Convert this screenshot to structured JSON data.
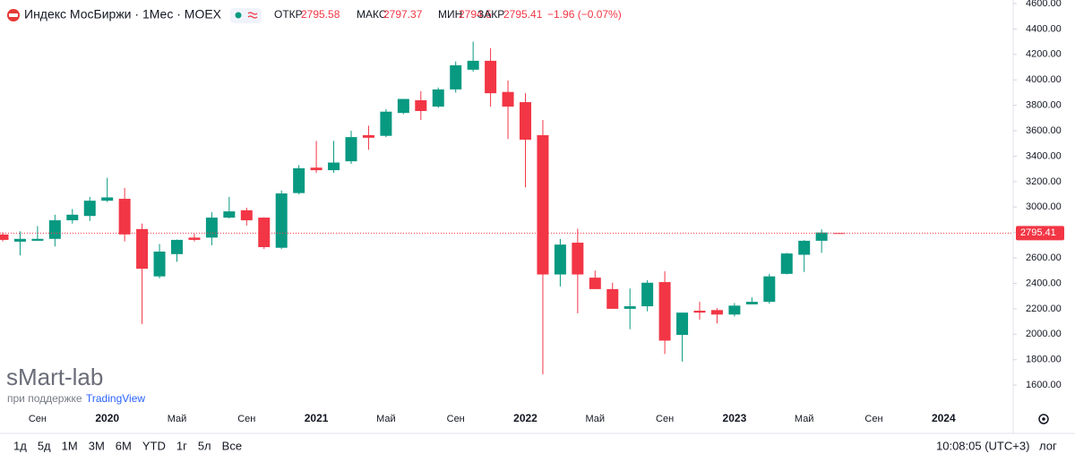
{
  "chart_data": {
    "type": "candlestick",
    "title": "Индекс МосБиржи · 1Мес · MOEX",
    "legend": {
      "open": "ОТКР",
      "high": "МАКС",
      "low": "МИН",
      "close": "ЗАКР",
      "change": "−1.96 (−0.07%)"
    },
    "up_color": "#089981",
    "down_color": "#f23645",
    "categories": [
      null,
      null,
      "Сен",
      null,
      null,
      null,
      "2020",
      null,
      null,
      null,
      "Май",
      null,
      null,
      null,
      "Сен",
      null,
      null,
      null,
      "2021",
      null,
      null,
      null,
      "Май",
      null,
      null,
      null,
      "Сен",
      null,
      null,
      null,
      "2022",
      null,
      null,
      null,
      "Май",
      null,
      null,
      null,
      "Сен",
      null,
      null,
      null,
      "2023",
      null,
      null,
      null,
      "Май",
      null,
      null,
      null,
      "Сен",
      null,
      null,
      null,
      "2024"
    ],
    "open": [
      2784,
      2728,
      2735,
      2750,
      2896,
      2930,
      3050,
      3065,
      2827,
      2455,
      2630,
      2760,
      2760,
      2917,
      2975,
      2917,
      2680,
      3110,
      3310,
      3290,
      3360,
      3565,
      3560,
      3740,
      3840,
      3790,
      3925,
      4080,
      4150,
      3905,
      3825,
      3565,
      2470,
      2720,
      2445,
      2355,
      2200,
      2220,
      2410,
      1995,
      2185,
      2190,
      2155,
      2235,
      2255,
      2475,
      2625,
      2735,
      2795.58,
      null,
      null,
      null,
      null,
      null,
      null
    ],
    "high": [
      2800,
      2810,
      2850,
      2940,
      2985,
      3080,
      3230,
      3150,
      2870,
      2710,
      2745,
      2790,
      2960,
      3080,
      2995,
      2920,
      3130,
      3330,
      3520,
      3520,
      3600,
      3640,
      3770,
      3850,
      3910,
      3940,
      4145,
      4300,
      4250,
      3995,
      3895,
      3685,
      2750,
      2830,
      2500,
      2405,
      2360,
      2425,
      2495,
      2170,
      2255,
      2205,
      2245,
      2290,
      2475,
      2640,
      2740,
      2825,
      2797.37,
      null,
      null,
      null,
      null,
      null,
      null
    ],
    "low": [
      2730,
      2620,
      2735,
      2690,
      2870,
      2890,
      3040,
      2730,
      2080,
      2440,
      2570,
      2730,
      2700,
      2910,
      2855,
      2670,
      2670,
      3100,
      3270,
      3270,
      3340,
      3450,
      3550,
      3730,
      3685,
      3780,
      3900,
      4065,
      3790,
      3535,
      3155,
      1685,
      2375,
      2165,
      2355,
      2200,
      2040,
      2180,
      1845,
      1785,
      2115,
      2085,
      2140,
      2235,
      2240,
      2470,
      2490,
      2640,
      2794.5,
      null,
      null,
      null,
      null,
      null,
      null
    ],
    "close": [
      2742,
      2750,
      2750,
      2896,
      2940,
      3050,
      3076,
      2785,
      2515,
      2650,
      2742,
      2742,
      2917,
      2966,
      2896,
      2685,
      3107,
      3305,
      3290,
      3350,
      3550,
      3545,
      3750,
      3850,
      3755,
      3925,
      4115,
      4150,
      3895,
      3790,
      3530,
      2470,
      2705,
      2470,
      2355,
      2200,
      2220,
      2405,
      1950,
      2170,
      2170,
      2155,
      2225,
      2255,
      2455,
      2635,
      2735,
      2800,
      2795.41,
      null,
      null,
      null,
      null,
      null,
      null
    ],
    "ylim": [
      1425,
      4628
    ],
    "yticks": [
      {
        "value": 1600,
        "label": "1600.00"
      },
      {
        "value": 1800,
        "label": "1800.00"
      },
      {
        "value": 2000,
        "label": "2000.00"
      },
      {
        "value": 2200,
        "label": "2200.00"
      },
      {
        "value": 2400,
        "label": "2400.00"
      },
      {
        "value": 2600,
        "label": "2600.00"
      },
      {
        "value": 2800,
        "label": "2800.00"
      },
      {
        "value": 3000,
        "label": "3000.00"
      },
      {
        "value": 3200,
        "label": "3200.00"
      },
      {
        "value": 3400,
        "label": "3400.00"
      },
      {
        "value": 3600,
        "label": "3600.00"
      },
      {
        "value": 3800,
        "label": "3800.00"
      },
      {
        "value": 4000,
        "label": "4000.00"
      },
      {
        "value": 4200,
        "label": "4200.00"
      },
      {
        "value": 4400,
        "label": "4400.00"
      },
      {
        "value": 4600,
        "label": "4600.00"
      }
    ]
  },
  "watermark": {
    "brand": "sMart-lab",
    "support": "при поддержке",
    "partner": "TradingView"
  },
  "toolbar": {
    "ranges": [
      "1д",
      "5д",
      "1М",
      "3М",
      "6М",
      "YTD",
      "1г",
      "5л",
      "Все"
    ],
    "clock": "10:08:05 (UTC+3)",
    "log": "лог"
  }
}
